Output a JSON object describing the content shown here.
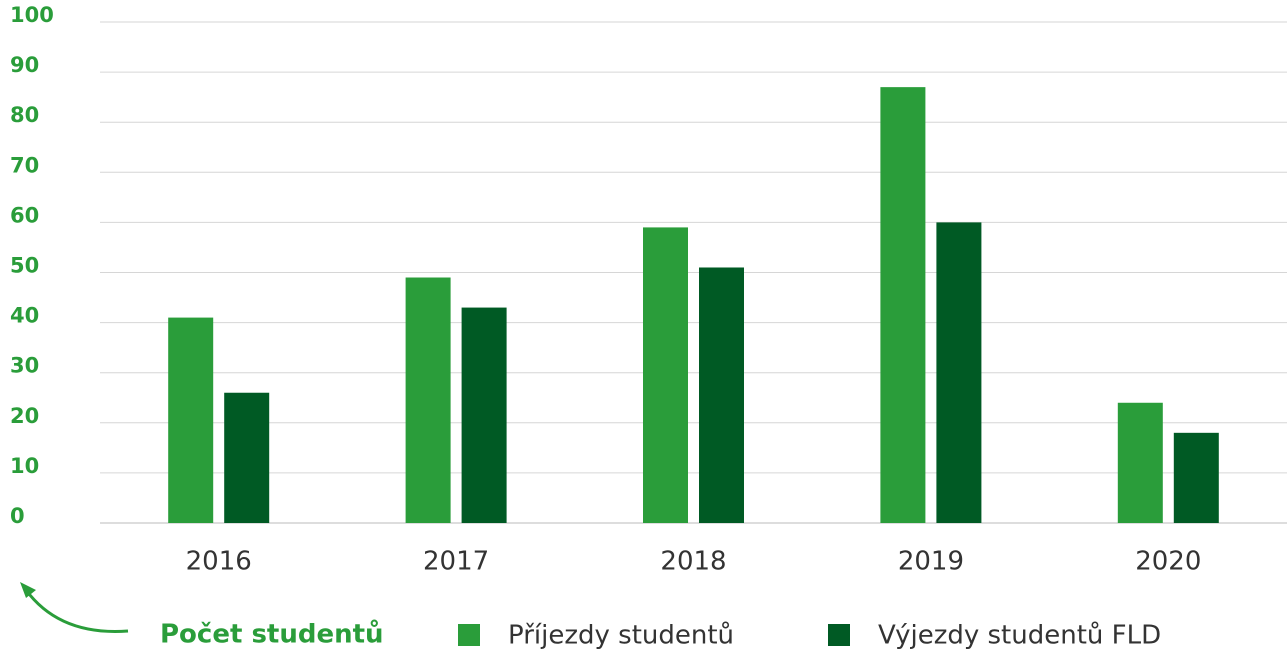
{
  "chart_data": {
    "type": "bar",
    "y_label": "Počet studentů",
    "categories": [
      "2016",
      "2017",
      "2018",
      "2019",
      "2020"
    ],
    "series": [
      {
        "name": "Příjezdy studentů",
        "color": "#2a9d3a",
        "values": [
          41,
          49,
          59,
          87,
          24
        ]
      },
      {
        "name": "Výjezdy studentů FLD",
        "color": "#005a24",
        "values": [
          26,
          43,
          51,
          60,
          18
        ]
      }
    ],
    "ylim": [
      0,
      100
    ],
    "yticks": [
      0,
      10,
      20,
      30,
      40,
      50,
      60,
      70,
      80,
      90,
      100
    ],
    "grid": true
  }
}
